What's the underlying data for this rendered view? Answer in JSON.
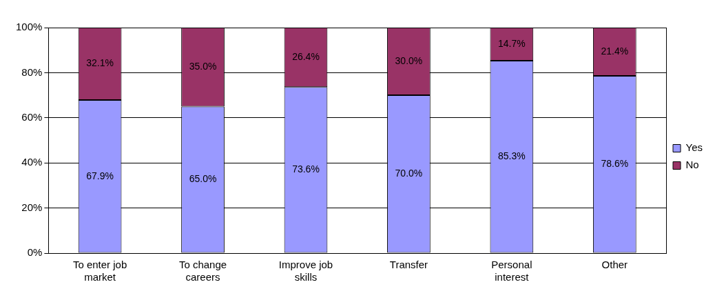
{
  "chart_data": {
    "type": "bar",
    "stacked": true,
    "categories": [
      "To enter job market",
      "To change careers",
      "Improve job skills",
      "Transfer",
      "Personal interest",
      "Other"
    ],
    "series": [
      {
        "name": "Yes",
        "color": "#9999ff",
        "values": [
          67.9,
          65.0,
          73.6,
          70.0,
          85.3,
          78.6
        ],
        "value_labels": [
          "67.9%",
          "65.0%",
          "73.6%",
          "70.0%",
          "85.3%",
          "78.6%"
        ]
      },
      {
        "name": "No",
        "color": "#993366",
        "values": [
          32.1,
          35.0,
          26.4,
          30.0,
          14.7,
          21.4
        ],
        "value_labels": [
          "32.1%",
          "35.0%",
          "26.4%",
          "30.0%",
          "14.7%",
          "21.4%"
        ]
      }
    ],
    "ylim": [
      0,
      100
    ],
    "yticks": [
      {
        "value": 0,
        "label": "0%"
      },
      {
        "value": 20,
        "label": "20%"
      },
      {
        "value": 40,
        "label": "40%"
      },
      {
        "value": 60,
        "label": "60%"
      },
      {
        "value": 80,
        "label": "80%"
      },
      {
        "value": 100,
        "label": "100%"
      }
    ],
    "grid": "y",
    "legend": "right"
  }
}
